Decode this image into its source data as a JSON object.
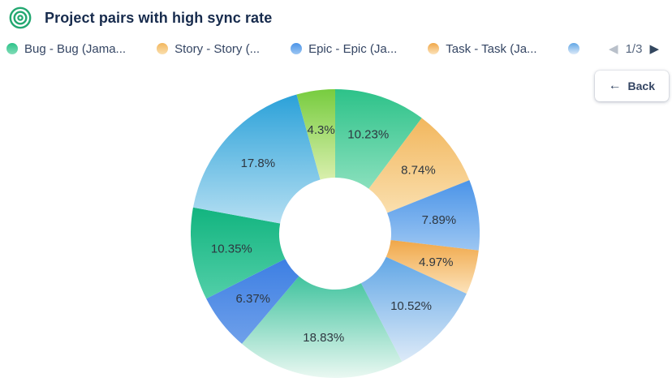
{
  "header": {
    "title": "Project pairs with high sync rate",
    "icon_color": "#23a871"
  },
  "legend": {
    "items": [
      {
        "label": "Bug - Bug (Jama...",
        "color": "#2dc289",
        "color_light": "#82ddb8"
      },
      {
        "label": "Story - Story (...",
        "color": "#f2b75e",
        "color_light": "#fadfae"
      },
      {
        "label": "Epic - Epic (Ja...",
        "color": "#4b94e8",
        "color_light": "#9cc6f2"
      },
      {
        "label": "Task - Task (Ja...",
        "color": "#f0a748",
        "color_light": "#fce3bb"
      },
      {
        "label": "",
        "color": "#62a7e6",
        "color_light": "#ddeaf8"
      }
    ],
    "page_indicator": "1/3",
    "prev_enabled": false,
    "next_enabled": true
  },
  "back_button": {
    "label": "Back"
  },
  "chart_data": {
    "type": "pie",
    "subtype": "donut",
    "title": "Project pairs with high sync rate",
    "unit": "%",
    "direction": "clockwise",
    "start_angle_deg": 0,
    "inner_radius_ratio": 0.39,
    "legend_position": "top",
    "label_color": "#2e3740",
    "slices": [
      {
        "label": "10.23%",
        "value": 10.23,
        "color": "#2dc289",
        "color_light": "#8ae0bd"
      },
      {
        "label": "8.74%",
        "value": 8.74,
        "color": "#f2b75e",
        "color_light": "#fadfae"
      },
      {
        "label": "7.89%",
        "value": 7.89,
        "color": "#4b94e8",
        "color_light": "#9cc6f2"
      },
      {
        "label": "4.97%",
        "value": 4.97,
        "color": "#f0a748",
        "color_light": "#fce3bb"
      },
      {
        "label": "10.52%",
        "value": 10.52,
        "color": "#62a7e6",
        "color_light": "#ddeaf8"
      },
      {
        "label": "18.83%",
        "value": 18.83,
        "color": "#41c39e",
        "color_light": "#eaf8f2"
      },
      {
        "label": "6.37%",
        "value": 6.37,
        "color": "#3d7fe3",
        "color_light": "#6fa0ea"
      },
      {
        "label": "10.35%",
        "value": 10.35,
        "color": "#12b47f",
        "color_light": "#52cfa8"
      },
      {
        "label": "17.8%",
        "value": 17.8,
        "color": "#2ba1d9",
        "color_light": "#b5dff2"
      },
      {
        "label": "4.3%",
        "value": 4.3,
        "color": "#77cc3f",
        "color_light": "#d9efad"
      }
    ]
  }
}
